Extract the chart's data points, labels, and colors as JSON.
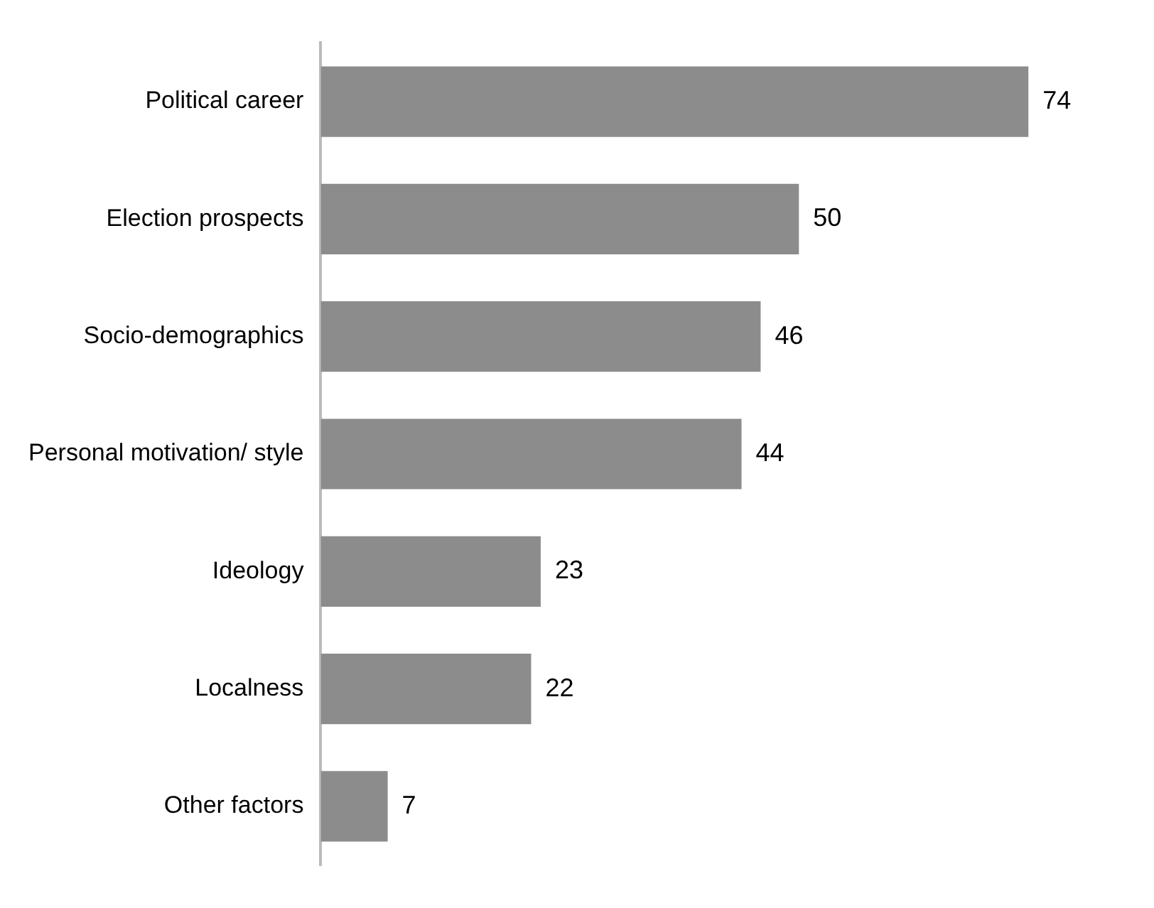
{
  "chart_data": {
    "type": "bar",
    "orientation": "horizontal",
    "categories": [
      "Political career",
      "Election prospects",
      "Socio-demographics",
      "Personal motivation/ style",
      "Ideology",
      "Localness",
      "Other factors"
    ],
    "values": [
      74,
      50,
      46,
      44,
      23,
      22,
      7
    ],
    "color": "#8c8c8c",
    "data_labels": true,
    "grid": false,
    "legend": false
  }
}
